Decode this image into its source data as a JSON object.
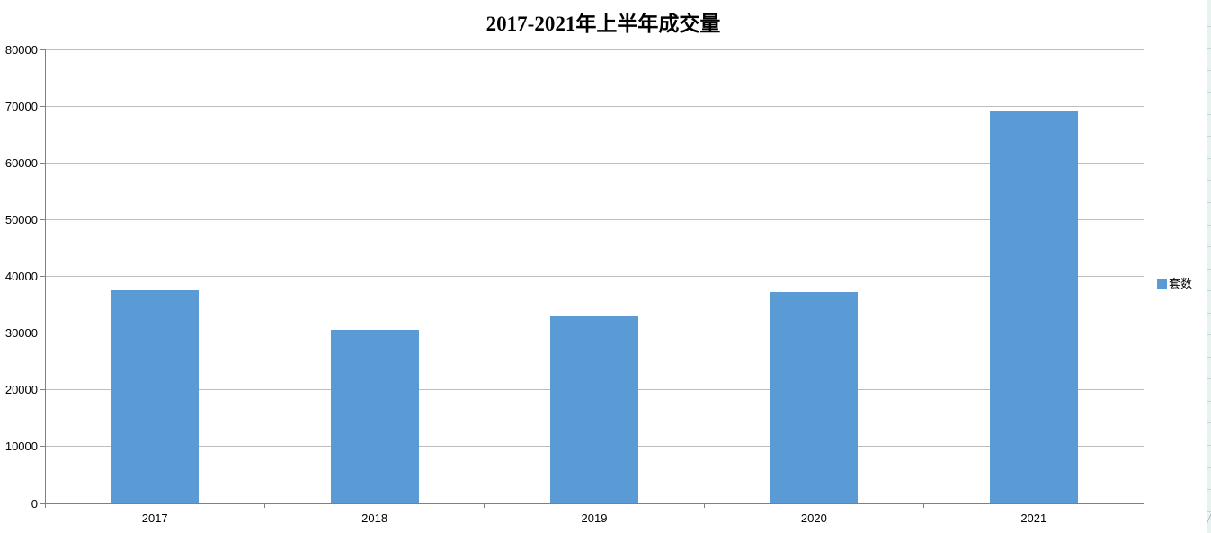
{
  "chart_data": {
    "type": "bar",
    "title": "2017-2021年上半年成交量",
    "categories": [
      "2017",
      "2018",
      "2019",
      "2020",
      "2021"
    ],
    "series": [
      {
        "name": "套数",
        "values": [
          37500,
          30500,
          33000,
          37200,
          69300
        ]
      }
    ],
    "xlabel": "",
    "ylabel": "",
    "ylim": [
      0,
      80000
    ],
    "ytick_step": 10000,
    "ytick_labels": [
      "0",
      "10000",
      "20000",
      "30000",
      "40000",
      "50000",
      "60000",
      "70000",
      "80000"
    ],
    "grid": true,
    "legend": {
      "position": "right",
      "items": [
        {
          "label": "套数",
          "color": "#5B9BD5"
        }
      ]
    }
  },
  "style": {
    "bar_color": "#5B9BD5",
    "gridline_color": "#BDBDBD",
    "axis_color": "#808080",
    "text_color": "#000000",
    "chart_border_color": "#A6A6A6",
    "worksheet_strip": {
      "background": "#E7F3F0",
      "gridline": "#BEDBD5",
      "diagonal": "#A3BDC9"
    }
  }
}
